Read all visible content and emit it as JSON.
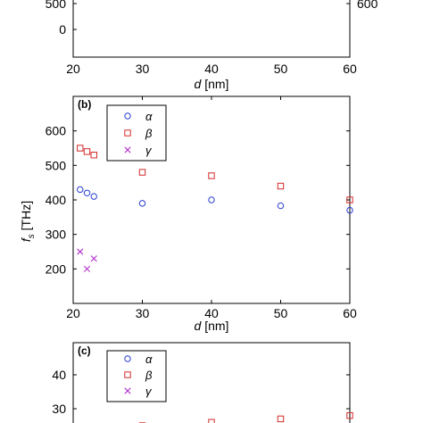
{
  "chart_data": [
    {
      "type": "scatter",
      "panel_label": "",
      "xlabel_italic": "d",
      "xlabel_unit": " [nm]",
      "xticks": [
        "20",
        "30",
        "40",
        "50",
        "60"
      ],
      "left_yticks": [
        "500",
        "0"
      ],
      "right_yticks": [
        "600"
      ],
      "series": []
    },
    {
      "type": "scatter",
      "panel_label": "(b)",
      "xlabel_italic": "d",
      "xlabel_unit": " [nm]",
      "ylabel_italic": "f",
      "ylabel_sub": "s",
      "ylabel_unit": " [THz]",
      "xlim": [
        20,
        60
      ],
      "ylim": [
        100,
        700
      ],
      "xticks": [
        20,
        30,
        40,
        50,
        60
      ],
      "yticks": [
        200,
        300,
        400,
        500,
        600
      ],
      "legend_position": "top-left",
      "series": [
        {
          "name": "α",
          "marker": "circle",
          "color": "#2b3fd0",
          "x": [
            21,
            22,
            23,
            30,
            40,
            50,
            60
          ],
          "y": [
            430,
            420,
            410,
            390,
            400,
            383,
            370
          ]
        },
        {
          "name": "β",
          "marker": "square",
          "color": "#d42a2a",
          "x": [
            21,
            22,
            23,
            30,
            40,
            50,
            60
          ],
          "y": [
            550,
            540,
            530,
            480,
            470,
            440,
            400
          ]
        },
        {
          "name": "γ",
          "marker": "cross",
          "color": "#b233cc",
          "x": [
            21,
            22,
            23
          ],
          "y": [
            250,
            200,
            230
          ]
        }
      ]
    },
    {
      "type": "scatter",
      "panel_label": "(c)",
      "yticks": [
        30,
        40
      ],
      "legend_position": "top-left",
      "series": [
        {
          "name": "α",
          "marker": "circle",
          "color": "#2b3fd0",
          "x": [],
          "y": []
        },
        {
          "name": "β",
          "marker": "square",
          "color": "#d42a2a",
          "x": [
            30,
            40,
            50,
            60
          ],
          "y": [
            25,
            26,
            27,
            28
          ]
        },
        {
          "name": "γ",
          "marker": "cross",
          "color": "#b233cc",
          "x": [],
          "y": []
        }
      ]
    }
  ]
}
